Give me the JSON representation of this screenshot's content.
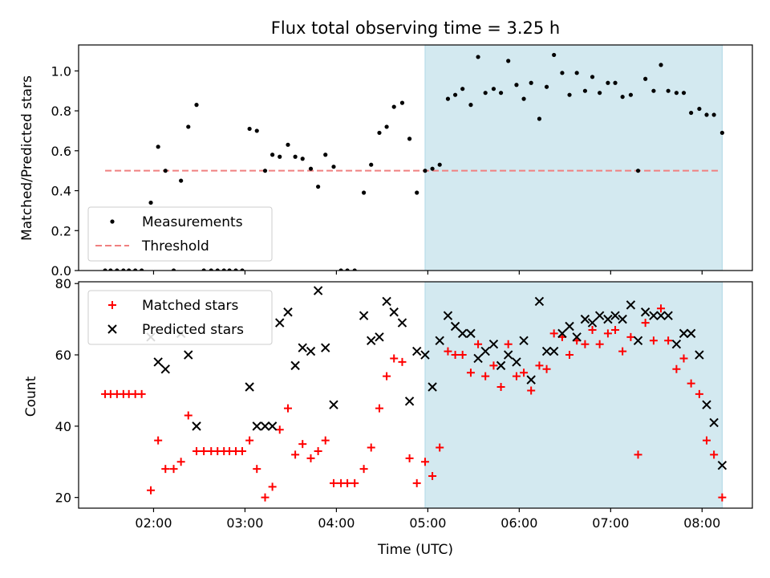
{
  "chart_data": [
    {
      "type": "scatter",
      "title": "Flux total observing time = 3.25 h",
      "ylabel": "Matched/Predicted stars",
      "xlabel": "",
      "ylim": [
        0,
        1.13
      ],
      "xlim_hours": [
        1.18,
        8.55
      ],
      "yticks": [
        "0.0",
        "0.2",
        "0.4",
        "0.6",
        "0.8",
        "1.0"
      ],
      "highlight_span_hours": [
        4.97,
        8.22
      ],
      "highlight_color": "#d3e9f0",
      "legend": {
        "placement": "lower-left",
        "entries": [
          {
            "label": "Measurements",
            "kind": "dot",
            "color": "#000000"
          },
          {
            "label": "Threshold",
            "kind": "dashed",
            "color": "#f08080"
          }
        ]
      },
      "threshold": {
        "value": 0.5,
        "x_range_hours": [
          1.47,
          8.18
        ],
        "color": "#f08080"
      },
      "series": [
        {
          "name": "Measurements",
          "color": "#000000",
          "points": [
            [
              1.47,
              0.0
            ],
            [
              1.53,
              0.0
            ],
            [
              1.6,
              0.0
            ],
            [
              1.67,
              0.0
            ],
            [
              1.73,
              0.0
            ],
            [
              1.8,
              0.0
            ],
            [
              1.87,
              0.0
            ],
            [
              1.97,
              0.34
            ],
            [
              2.05,
              0.62
            ],
            [
              2.13,
              0.5
            ],
            [
              2.22,
              0.0
            ],
            [
              2.3,
              0.45
            ],
            [
              2.38,
              0.72
            ],
            [
              2.47,
              0.83
            ],
            [
              2.55,
              0.0
            ],
            [
              2.63,
              0.0
            ],
            [
              2.7,
              0.0
            ],
            [
              2.77,
              0.0
            ],
            [
              2.83,
              0.0
            ],
            [
              2.9,
              0.0
            ],
            [
              2.97,
              0.0
            ],
            [
              3.05,
              0.71
            ],
            [
              3.13,
              0.7
            ],
            [
              3.22,
              0.5
            ],
            [
              3.3,
              0.58
            ],
            [
              3.38,
              0.57
            ],
            [
              3.47,
              0.63
            ],
            [
              3.55,
              0.57
            ],
            [
              3.63,
              0.56
            ],
            [
              3.72,
              0.51
            ],
            [
              3.8,
              0.42
            ],
            [
              3.88,
              0.58
            ],
            [
              3.97,
              0.52
            ],
            [
              4.05,
              0.0
            ],
            [
              4.12,
              0.0
            ],
            [
              4.2,
              0.0
            ],
            [
              4.3,
              0.39
            ],
            [
              4.38,
              0.53
            ],
            [
              4.47,
              0.69
            ],
            [
              4.55,
              0.72
            ],
            [
              4.63,
              0.82
            ],
            [
              4.72,
              0.84
            ],
            [
              4.8,
              0.66
            ],
            [
              4.88,
              0.39
            ],
            [
              4.97,
              0.5
            ],
            [
              5.05,
              0.51
            ],
            [
              5.13,
              0.53
            ],
            [
              5.22,
              0.86
            ],
            [
              5.3,
              0.88
            ],
            [
              5.38,
              0.91
            ],
            [
              5.47,
              0.83
            ],
            [
              5.55,
              1.07
            ],
            [
              5.63,
              0.89
            ],
            [
              5.72,
              0.91
            ],
            [
              5.8,
              0.89
            ],
            [
              5.88,
              1.05
            ],
            [
              5.97,
              0.93
            ],
            [
              6.05,
              0.86
            ],
            [
              6.13,
              0.94
            ],
            [
              6.22,
              0.76
            ],
            [
              6.3,
              0.92
            ],
            [
              6.38,
              1.08
            ],
            [
              6.47,
              0.99
            ],
            [
              6.55,
              0.88
            ],
            [
              6.63,
              0.99
            ],
            [
              6.72,
              0.9
            ],
            [
              6.8,
              0.97
            ],
            [
              6.88,
              0.89
            ],
            [
              6.97,
              0.94
            ],
            [
              7.05,
              0.94
            ],
            [
              7.13,
              0.87
            ],
            [
              7.22,
              0.88
            ],
            [
              7.3,
              0.5
            ],
            [
              7.38,
              0.96
            ],
            [
              7.47,
              0.9
            ],
            [
              7.55,
              1.03
            ],
            [
              7.63,
              0.9
            ],
            [
              7.72,
              0.89
            ],
            [
              7.8,
              0.89
            ],
            [
              7.88,
              0.79
            ],
            [
              7.97,
              0.81
            ],
            [
              8.05,
              0.78
            ],
            [
              8.13,
              0.78
            ],
            [
              8.22,
              0.69
            ]
          ]
        }
      ]
    },
    {
      "type": "scatter",
      "title": "",
      "ylabel": "Count",
      "xlabel": "Time (UTC)",
      "ylim": [
        17,
        80.5
      ],
      "xlim_hours": [
        1.18,
        8.55
      ],
      "yticks": [
        "20",
        "40",
        "60",
        "80"
      ],
      "xticks": [
        {
          "hour": 2,
          "label": "02:00"
        },
        {
          "hour": 3,
          "label": "03:00"
        },
        {
          "hour": 4,
          "label": "04:00"
        },
        {
          "hour": 5,
          "label": "05:00"
        },
        {
          "hour": 6,
          "label": "06:00"
        },
        {
          "hour": 7,
          "label": "07:00"
        },
        {
          "hour": 8,
          "label": "08:00"
        }
      ],
      "highlight_span_hours": [
        4.97,
        8.22
      ],
      "highlight_color": "#d3e9f0",
      "legend": {
        "placement": "upper-left",
        "entries": [
          {
            "label": "Matched stars",
            "kind": "plus",
            "color": "#ff0000"
          },
          {
            "label": "Predicted stars",
            "kind": "x",
            "color": "#000000"
          }
        ]
      },
      "series": [
        {
          "name": "Matched stars",
          "marker": "plus",
          "color": "#ff0000",
          "points": [
            [
              1.47,
              49
            ],
            [
              1.53,
              49
            ],
            [
              1.6,
              49
            ],
            [
              1.67,
              49
            ],
            [
              1.73,
              49
            ],
            [
              1.8,
              49
            ],
            [
              1.87,
              49
            ],
            [
              1.97,
              22
            ],
            [
              2.05,
              36
            ],
            [
              2.13,
              28
            ],
            [
              2.22,
              28
            ],
            [
              2.3,
              30
            ],
            [
              2.38,
              43
            ],
            [
              2.47,
              33
            ],
            [
              2.55,
              33
            ],
            [
              2.63,
              33
            ],
            [
              2.7,
              33
            ],
            [
              2.77,
              33
            ],
            [
              2.83,
              33
            ],
            [
              2.9,
              33
            ],
            [
              2.97,
              33
            ],
            [
              3.05,
              36
            ],
            [
              3.13,
              28
            ],
            [
              3.22,
              20
            ],
            [
              3.3,
              23
            ],
            [
              3.38,
              39
            ],
            [
              3.47,
              45
            ],
            [
              3.55,
              32
            ],
            [
              3.63,
              35
            ],
            [
              3.72,
              31
            ],
            [
              3.8,
              33
            ],
            [
              3.88,
              36
            ],
            [
              3.97,
              24
            ],
            [
              4.05,
              24
            ],
            [
              4.12,
              24
            ],
            [
              4.2,
              24
            ],
            [
              4.3,
              28
            ],
            [
              4.38,
              34
            ],
            [
              4.47,
              45
            ],
            [
              4.55,
              54
            ],
            [
              4.63,
              59
            ],
            [
              4.72,
              58
            ],
            [
              4.8,
              31
            ],
            [
              4.88,
              24
            ],
            [
              4.97,
              30
            ],
            [
              5.05,
              26
            ],
            [
              5.13,
              34
            ],
            [
              5.22,
              61
            ],
            [
              5.3,
              60
            ],
            [
              5.38,
              60
            ],
            [
              5.47,
              55
            ],
            [
              5.55,
              63
            ],
            [
              5.63,
              54
            ],
            [
              5.72,
              57
            ],
            [
              5.8,
              51
            ],
            [
              5.88,
              63
            ],
            [
              5.97,
              54
            ],
            [
              6.05,
              55
            ],
            [
              6.13,
              50
            ],
            [
              6.22,
              57
            ],
            [
              6.3,
              56
            ],
            [
              6.38,
              66
            ],
            [
              6.47,
              65
            ],
            [
              6.55,
              60
            ],
            [
              6.63,
              64
            ],
            [
              6.72,
              63
            ],
            [
              6.8,
              67
            ],
            [
              6.88,
              63
            ],
            [
              6.97,
              66
            ],
            [
              7.05,
              67
            ],
            [
              7.13,
              61
            ],
            [
              7.22,
              65
            ],
            [
              7.3,
              32
            ],
            [
              7.38,
              69
            ],
            [
              7.47,
              64
            ],
            [
              7.55,
              73
            ],
            [
              7.63,
              64
            ],
            [
              7.72,
              56
            ],
            [
              7.8,
              59
            ],
            [
              7.88,
              52
            ],
            [
              7.97,
              49
            ],
            [
              8.05,
              36
            ],
            [
              8.13,
              32
            ],
            [
              8.22,
              20
            ]
          ]
        },
        {
          "name": "Predicted stars",
          "marker": "x",
          "color": "#000000",
          "points": [
            [
              1.97,
              65
            ],
            [
              2.05,
              58
            ],
            [
              2.13,
              56
            ],
            [
              2.3,
              66
            ],
            [
              2.38,
              60
            ],
            [
              2.47,
              40
            ],
            [
              3.05,
              51
            ],
            [
              3.13,
              40
            ],
            [
              3.22,
              40
            ],
            [
              3.3,
              40
            ],
            [
              3.38,
              69
            ],
            [
              3.47,
              72
            ],
            [
              3.55,
              57
            ],
            [
              3.63,
              62
            ],
            [
              3.72,
              61
            ],
            [
              3.8,
              78
            ],
            [
              3.88,
              62
            ],
            [
              3.97,
              46
            ],
            [
              4.3,
              71
            ],
            [
              4.38,
              64
            ],
            [
              4.47,
              65
            ],
            [
              4.55,
              75
            ],
            [
              4.63,
              72
            ],
            [
              4.72,
              69
            ],
            [
              4.8,
              47
            ],
            [
              4.88,
              61
            ],
            [
              4.97,
              60
            ],
            [
              5.05,
              51
            ],
            [
              5.13,
              64
            ],
            [
              5.22,
              71
            ],
            [
              5.3,
              68
            ],
            [
              5.38,
              66
            ],
            [
              5.47,
              66
            ],
            [
              5.55,
              59
            ],
            [
              5.63,
              61
            ],
            [
              5.72,
              63
            ],
            [
              5.8,
              57
            ],
            [
              5.88,
              60
            ],
            [
              5.97,
              58
            ],
            [
              6.05,
              64
            ],
            [
              6.13,
              53
            ],
            [
              6.22,
              75
            ],
            [
              6.3,
              61
            ],
            [
              6.38,
              61
            ],
            [
              6.47,
              66
            ],
            [
              6.55,
              68
            ],
            [
              6.63,
              65
            ],
            [
              6.72,
              70
            ],
            [
              6.8,
              69
            ],
            [
              6.88,
              71
            ],
            [
              6.97,
              70
            ],
            [
              7.05,
              71
            ],
            [
              7.13,
              70
            ],
            [
              7.22,
              74
            ],
            [
              7.3,
              64
            ],
            [
              7.38,
              72
            ],
            [
              7.47,
              71
            ],
            [
              7.55,
              71
            ],
            [
              7.63,
              71
            ],
            [
              7.72,
              63
            ],
            [
              7.8,
              66
            ],
            [
              7.88,
              66
            ],
            [
              7.97,
              60
            ],
            [
              8.05,
              46
            ],
            [
              8.13,
              41
            ],
            [
              8.22,
              29
            ]
          ]
        }
      ]
    }
  ]
}
